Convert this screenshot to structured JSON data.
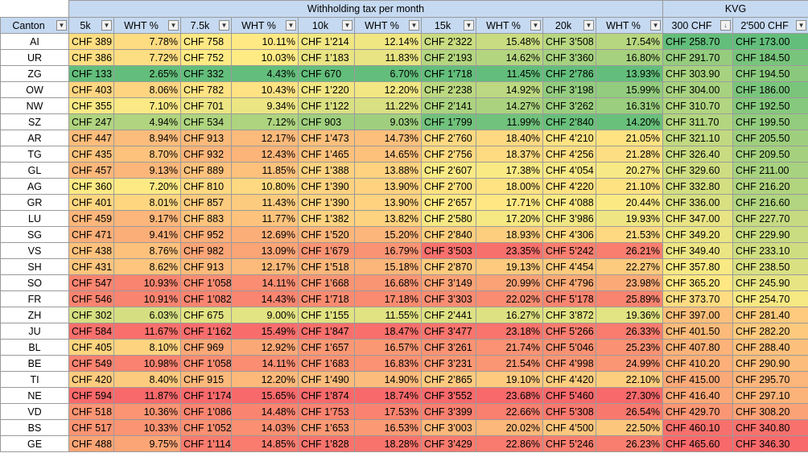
{
  "groups": {
    "wht": "Withholding tax per month",
    "kvg": "KVG"
  },
  "headers": [
    "Canton",
    "5k",
    "WHT %",
    "7.5k",
    "WHT %",
    "10k",
    "WHT %",
    "15k",
    "WHT %",
    "20k",
    "WHT %",
    "300 CHF",
    "2'500 CHF"
  ],
  "icons": {
    "filter": "filter-dropdown-icon",
    "sort": "sort-descending-icon"
  },
  "rows": [
    [
      "AI",
      "CHF 389",
      "7.78%",
      "CHF 758",
      "10.11%",
      "CHF 1’214",
      "12.14%",
      "CHF 2’322",
      "15.48%",
      "CHF 3’508",
      "17.54%",
      "CHF 258.70",
      "CHF 173.00"
    ],
    [
      "UR",
      "CHF 386",
      "7.72%",
      "CHF 752",
      "10.03%",
      "CHF 1’183",
      "11.83%",
      "CHF 2’193",
      "14.62%",
      "CHF 3’360",
      "16.80%",
      "CHF 291.70",
      "CHF 184.50"
    ],
    [
      "ZG",
      "CHF 133",
      "2.65%",
      "CHF 332",
      "4.43%",
      "CHF 670",
      "6.70%",
      "CHF 1’718",
      "11.45%",
      "CHF 2’786",
      "13.93%",
      "CHF 303.90",
      "CHF 194.50"
    ],
    [
      "OW",
      "CHF 403",
      "8.06%",
      "CHF 782",
      "10.43%",
      "CHF 1’220",
      "12.20%",
      "CHF 2’238",
      "14.92%",
      "CHF 3’198",
      "15.99%",
      "CHF 304.00",
      "CHF 186.00"
    ],
    [
      "NW",
      "CHF 355",
      "7.10%",
      "CHF 701",
      "9.34%",
      "CHF 1’122",
      "11.22%",
      "CHF 2’141",
      "14.27%",
      "CHF 3’262",
      "16.31%",
      "CHF 310.70",
      "CHF 192.50"
    ],
    [
      "SZ",
      "CHF 247",
      "4.94%",
      "CHF 534",
      "7.12%",
      "CHF 903",
      "9.03%",
      "CHF 1’799",
      "11.99%",
      "CHF 2’840",
      "14.20%",
      "CHF 311.70",
      "CHF 199.50"
    ],
    [
      "AR",
      "CHF 447",
      "8.94%",
      "CHF 913",
      "12.17%",
      "CHF 1’473",
      "14.73%",
      "CHF 2’760",
      "18.40%",
      "CHF 4’210",
      "21.05%",
      "CHF 321.10",
      "CHF 205.50"
    ],
    [
      "TG",
      "CHF 435",
      "8.70%",
      "CHF 932",
      "12.43%",
      "CHF 1’465",
      "14.65%",
      "CHF 2’756",
      "18.37%",
      "CHF 4’256",
      "21.28%",
      "CHF 326.40",
      "CHF 209.50"
    ],
    [
      "GL",
      "CHF 457",
      "9.13%",
      "CHF 889",
      "11.85%",
      "CHF 1’388",
      "13.88%",
      "CHF 2’607",
      "17.38%",
      "CHF 4’054",
      "20.27%",
      "CHF 329.60",
      "CHF 211.00"
    ],
    [
      "AG",
      "CHF 360",
      "7.20%",
      "CHF 810",
      "10.80%",
      "CHF 1’390",
      "13.90%",
      "CHF 2’700",
      "18.00%",
      "CHF 4’220",
      "21.10%",
      "CHF 332.80",
      "CHF 216.20"
    ],
    [
      "GR",
      "CHF 401",
      "8.01%",
      "CHF 857",
      "11.43%",
      "CHF 1’390",
      "13.90%",
      "CHF 2’657",
      "17.71%",
      "CHF 4’088",
      "20.44%",
      "CHF 336.00",
      "CHF 216.60"
    ],
    [
      "LU",
      "CHF 459",
      "9.17%",
      "CHF 883",
      "11.77%",
      "CHF 1’382",
      "13.82%",
      "CHF 2’580",
      "17.20%",
      "CHF 3’986",
      "19.93%",
      "CHF 347.00",
      "CHF 227.70"
    ],
    [
      "SG",
      "CHF 471",
      "9.41%",
      "CHF 952",
      "12.69%",
      "CHF 1’520",
      "15.20%",
      "CHF 2’840",
      "18.93%",
      "CHF 4’306",
      "21.53%",
      "CHF 349.20",
      "CHF 229.90"
    ],
    [
      "VS",
      "CHF 438",
      "8.76%",
      "CHF 982",
      "13.09%",
      "CHF 1’679",
      "16.79%",
      "CHF 3’503",
      "23.35%",
      "CHF 5’242",
      "26.21%",
      "CHF 349.40",
      "CHF 233.10"
    ],
    [
      "SH",
      "CHF 431",
      "8.62%",
      "CHF 913",
      "12.17%",
      "CHF 1’518",
      "15.18%",
      "CHF 2’870",
      "19.13%",
      "CHF 4’454",
      "22.27%",
      "CHF 357.80",
      "CHF 238.50"
    ],
    [
      "SO",
      "CHF 547",
      "10.93%",
      "CHF 1’058",
      "14.11%",
      "CHF 1’668",
      "16.68%",
      "CHF 3’149",
      "20.99%",
      "CHF 4’796",
      "23.98%",
      "CHF 365.20",
      "CHF 245.90"
    ],
    [
      "FR",
      "CHF 546",
      "10.91%",
      "CHF 1’082",
      "14.43%",
      "CHF 1’718",
      "17.18%",
      "CHF 3’303",
      "22.02%",
      "CHF 5’178",
      "25.89%",
      "CHF 373.70",
      "CHF 254.70"
    ],
    [
      "ZH",
      "CHF 302",
      "6.03%",
      "CHF 675",
      "9.00%",
      "CHF 1’155",
      "11.55%",
      "CHF 2’441",
      "16.27%",
      "CHF 3’872",
      "19.36%",
      "CHF 397.00",
      "CHF 281.40"
    ],
    [
      "JU",
      "CHF 584",
      "11.67%",
      "CHF 1’162",
      "15.49%",
      "CHF 1’847",
      "18.47%",
      "CHF 3’477",
      "23.18%",
      "CHF 5’266",
      "26.33%",
      "CHF 401.50",
      "CHF 282.20"
    ],
    [
      "BL",
      "CHF 405",
      "8.10%",
      "CHF 969",
      "12.92%",
      "CHF 1’657",
      "16.57%",
      "CHF 3’261",
      "21.74%",
      "CHF 5’046",
      "25.23%",
      "CHF 407.80",
      "CHF 288.40"
    ],
    [
      "BE",
      "CHF 549",
      "10.98%",
      "CHF 1’058",
      "14.11%",
      "CHF 1’683",
      "16.83%",
      "CHF 3’231",
      "21.54%",
      "CHF 4’998",
      "24.99%",
      "CHF 410.20",
      "CHF 290.90"
    ],
    [
      "TI",
      "CHF 420",
      "8.40%",
      "CHF 915",
      "12.20%",
      "CHF 1’490",
      "14.90%",
      "CHF 2’865",
      "19.10%",
      "CHF 4’420",
      "22.10%",
      "CHF 415.00",
      "CHF 295.70"
    ],
    [
      "NE",
      "CHF 594",
      "11.87%",
      "CHF 1’174",
      "15.65%",
      "CHF 1’874",
      "18.74%",
      "CHF 3’552",
      "23.68%",
      "CHF 5’460",
      "27.30%",
      "CHF 416.40",
      "CHF 297.10"
    ],
    [
      "VD",
      "CHF 518",
      "10.36%",
      "CHF 1’086",
      "14.48%",
      "CHF 1’753",
      "17.53%",
      "CHF 3’399",
      "22.66%",
      "CHF 5’308",
      "26.54%",
      "CHF 429.70",
      "CHF 308.20"
    ],
    [
      "BS",
      "CHF 517",
      "10.33%",
      "CHF 1’052",
      "14.03%",
      "CHF 1’653",
      "16.53%",
      "CHF 3’003",
      "20.02%",
      "CHF 4’500",
      "22.50%",
      "CHF 460.10",
      "CHF 340.80"
    ],
    [
      "GE",
      "CHF 488",
      "9.75%",
      "CHF 1’114",
      "14.85%",
      "CHF 1’828",
      "18.28%",
      "CHF 3’429",
      "22.86%",
      "CHF 5’246",
      "26.23%",
      "CHF 465.60",
      "CHF 346.30"
    ]
  ],
  "colors": {
    "header_bg": "#c5d9f1",
    "scale_low": "#63be7b",
    "scale_mid": "#ffeb84",
    "scale_high": "#f8696b"
  }
}
